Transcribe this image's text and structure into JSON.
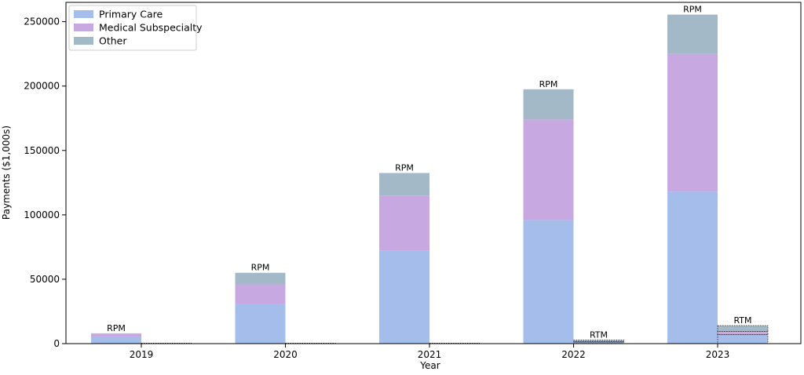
{
  "chart_data": {
    "type": "bar",
    "xlabel": "Year",
    "ylabel": "Payments ($1,000s)",
    "ylim": [
      0,
      265000
    ],
    "yticks": [
      0,
      50000,
      100000,
      150000,
      200000,
      250000
    ],
    "categories": [
      "2019",
      "2020",
      "2021",
      "2022",
      "2023"
    ],
    "stacks": [
      {
        "label": "RPM",
        "series": [
          {
            "name": "Primary Care",
            "values": [
              5500,
              30500,
              72000,
              96000,
              118000
            ]
          },
          {
            "name": "Medical Subspecialty",
            "values": [
              2000,
              15500,
              43000,
              78000,
              107000
            ]
          },
          {
            "name": "Other",
            "values": [
              500,
              9000,
              17500,
              23500,
              30500
            ]
          }
        ]
      },
      {
        "label": "RTM",
        "series": [
          {
            "name": "Primary Care",
            "values": [
              0,
              0,
              0,
              1200,
              7000
            ]
          },
          {
            "name": "Medical Subspecialty",
            "values": [
              0,
              0,
              0,
              400,
              2500
            ]
          },
          {
            "name": "Other",
            "values": [
              0,
              0,
              0,
              1200,
              4500
            ]
          }
        ]
      }
    ],
    "colors": {
      "Primary Care": "#a4bdeb",
      "Medical Subspecialty": "#c8a8e0",
      "Other": "#a4b9c8"
    },
    "legend": {
      "position": "top-left",
      "entries": [
        "Primary Care",
        "Medical Subspecialty",
        "Other"
      ]
    },
    "grid": false
  }
}
